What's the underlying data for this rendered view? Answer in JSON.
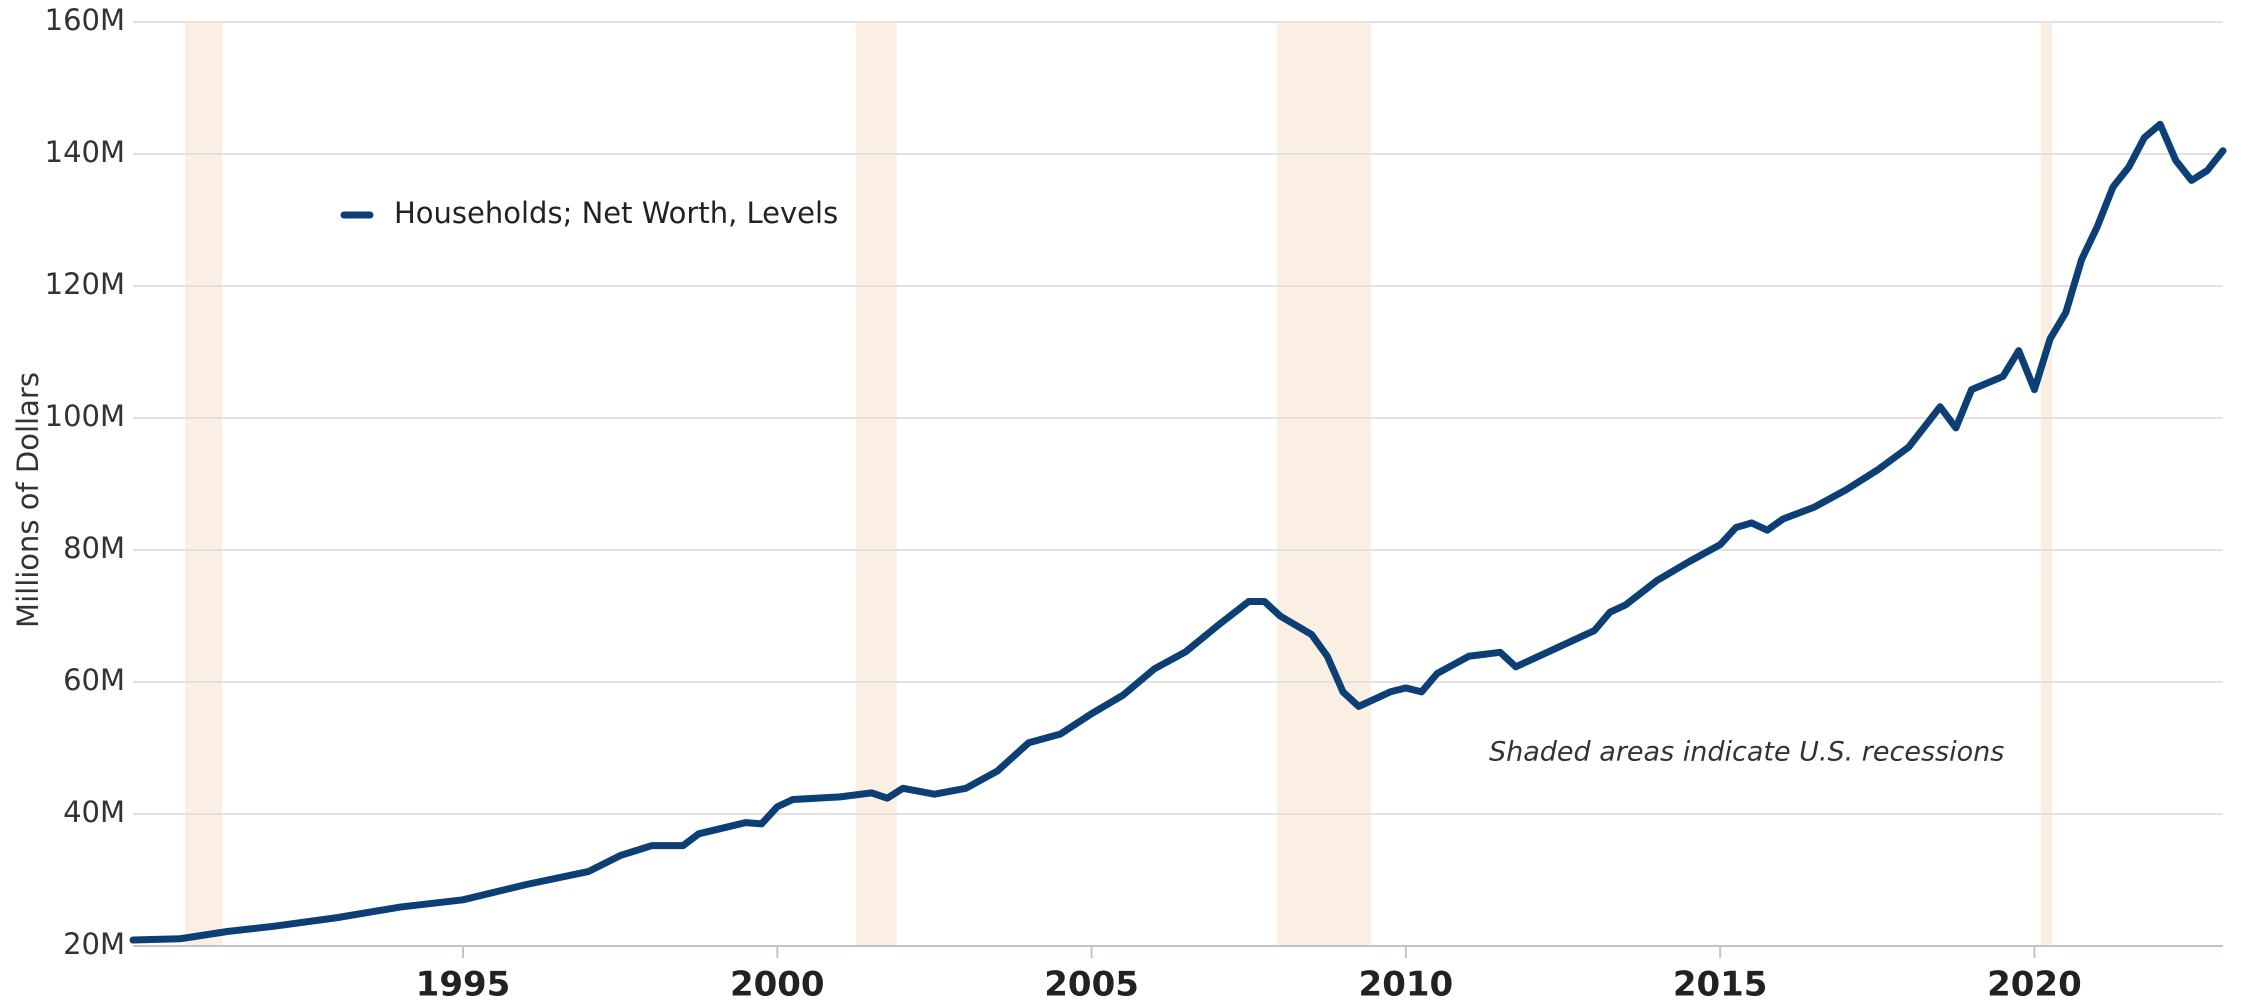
{
  "chart_data": {
    "type": "line",
    "y_label": "Millions of Dollars",
    "annotation": "Shaded areas indicate U.S. recessions",
    "recessions": [
      [
        1990.58,
        1991.17
      ],
      [
        2001.25,
        2001.9
      ],
      [
        2007.95,
        2009.45
      ],
      [
        2020.1,
        2020.28
      ]
    ],
    "recession_color": "#fbeee3",
    "x": [
      1989.75,
      1990.5,
      1991.25,
      1992,
      1993,
      1994,
      1995,
      1996,
      1997,
      1997.5,
      1998,
      1998.5,
      1998.75,
      1999.5,
      1999.75,
      2000,
      2000.25,
      2001,
      2001.5,
      2001.75,
      2002,
      2002.5,
      2003,
      2003.5,
      2004,
      2004.5,
      2005,
      2005.5,
      2006,
      2006.5,
      2007,
      2007.5,
      2007.75,
      2008,
      2008.5,
      2008.75,
      2009,
      2009.25,
      2009.5,
      2009.75,
      2010,
      2010.25,
      2010.5,
      2011,
      2011.5,
      2011.75,
      2012,
      2012.5,
      2013,
      2013.25,
      2013.5,
      2014,
      2014.5,
      2015,
      2015.25,
      2015.5,
      2015.75,
      2016,
      2016.5,
      2017,
      2017.5,
      2018,
      2018.5,
      2018.75,
      2019,
      2019.5,
      2019.75,
      2020,
      2020.25,
      2020.5,
      2020.75,
      2021,
      2021.25,
      2021.5,
      2021.75,
      2022,
      2022.25,
      2022.5,
      2022.75,
      2023
    ],
    "series": [
      {
        "name": "Households; Net Worth, Levels",
        "color": "#0b3f75",
        "values": [
          20.9,
          21.1,
          22.2,
          23,
          24.3,
          25.9,
          27,
          29.3,
          31.3,
          33.7,
          35.2,
          35.2,
          37,
          38.7,
          38.5,
          41.1,
          42.2,
          42.6,
          43.2,
          42.4,
          43.9,
          43,
          43.9,
          46.5,
          50.8,
          52.1,
          55.2,
          58,
          62,
          64.6,
          68.5,
          72.2,
          72.2,
          70,
          67.2,
          63.9,
          58.5,
          56.3,
          57.4,
          58.5,
          59.1,
          58.5,
          61.3,
          63.9,
          64.5,
          62.3,
          63.4,
          65.6,
          67.8,
          70.6,
          71.7,
          75.4,
          78.2,
          80.8,
          83.4,
          84.1,
          83,
          84.7,
          86.5,
          89.1,
          92.1,
          95.6,
          101.7,
          98.5,
          104.3,
          106.3,
          110.2,
          104.3,
          112,
          116,
          124,
          129,
          135,
          138,
          142.5,
          144.5,
          139,
          136,
          137.5,
          140.5
        ]
      }
    ],
    "xlim": [
      1989.75,
      2023.0
    ],
    "xticks": [
      1995,
      2000,
      2005,
      2010,
      2015,
      2020
    ],
    "ylim": [
      20,
      160
    ],
    "yticks": [
      {
        "value": 20,
        "label": "20M"
      },
      {
        "value": 40,
        "label": "40M"
      },
      {
        "value": 60,
        "label": "60M"
      },
      {
        "value": 80,
        "label": "80M"
      },
      {
        "value": 100,
        "label": "100M"
      },
      {
        "value": 120,
        "label": "120M"
      },
      {
        "value": 140,
        "label": "140M"
      },
      {
        "value": 160,
        "label": "160M"
      }
    ],
    "grid": true
  }
}
